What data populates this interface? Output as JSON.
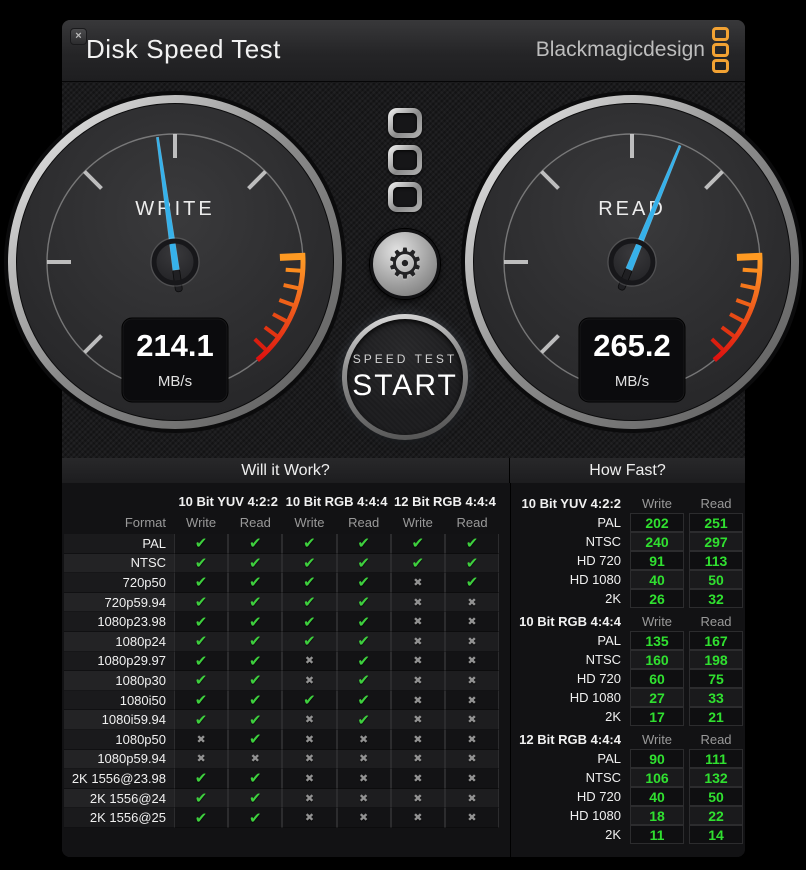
{
  "window": {
    "title": "Disk Speed Test",
    "close_label": "×"
  },
  "logo": {
    "text": "Blackmagicdesign",
    "squares": 3,
    "square_color": "#f2a233"
  },
  "gauges": [
    {
      "id": "write",
      "label": "WRITE",
      "value": "214.1",
      "unit": "MB/s",
      "value_num": 214.1
    },
    {
      "id": "read",
      "label": "READ",
      "value": "265.2",
      "unit": "MB/s",
      "value_num": 265.2
    }
  ],
  "controls": {
    "gear_icon": "⚙",
    "start_line1": "SPEED TEST",
    "start_line2": "START"
  },
  "will_it_work": {
    "title": "Will it Work?",
    "format_header": "Format",
    "groups": [
      "10 Bit YUV 4:2:2",
      "10 Bit RGB 4:4:4",
      "12 Bit RGB 4:4:4"
    ],
    "sub_headers": [
      "Write",
      "Read"
    ],
    "rows": [
      {
        "format": "PAL",
        "marks": [
          1,
          1,
          1,
          1,
          1,
          1
        ]
      },
      {
        "format": "NTSC",
        "marks": [
          1,
          1,
          1,
          1,
          1,
          1
        ]
      },
      {
        "format": "720p50",
        "marks": [
          1,
          1,
          1,
          1,
          0,
          1
        ]
      },
      {
        "format": "720p59.94",
        "marks": [
          1,
          1,
          1,
          1,
          0,
          0
        ]
      },
      {
        "format": "1080p23.98",
        "marks": [
          1,
          1,
          1,
          1,
          0,
          0
        ]
      },
      {
        "format": "1080p24",
        "marks": [
          1,
          1,
          1,
          1,
          0,
          0
        ]
      },
      {
        "format": "1080p29.97",
        "marks": [
          1,
          1,
          0,
          1,
          0,
          0
        ]
      },
      {
        "format": "1080p30",
        "marks": [
          1,
          1,
          0,
          1,
          0,
          0
        ]
      },
      {
        "format": "1080i50",
        "marks": [
          1,
          1,
          1,
          1,
          0,
          0
        ]
      },
      {
        "format": "1080i59.94",
        "marks": [
          1,
          1,
          0,
          1,
          0,
          0
        ]
      },
      {
        "format": "1080p50",
        "marks": [
          0,
          1,
          0,
          0,
          0,
          0
        ]
      },
      {
        "format": "1080p59.94",
        "marks": [
          0,
          0,
          0,
          0,
          0,
          0
        ]
      },
      {
        "format": "2K 1556@23.98",
        "marks": [
          1,
          1,
          0,
          0,
          0,
          0
        ]
      },
      {
        "format": "2K 1556@24",
        "marks": [
          1,
          1,
          0,
          0,
          0,
          0
        ]
      },
      {
        "format": "2K 1556@25",
        "marks": [
          1,
          1,
          0,
          0,
          0,
          0
        ]
      }
    ]
  },
  "how_fast": {
    "title": "How Fast?",
    "col_headers": [
      "Write",
      "Read"
    ],
    "sections": [
      {
        "name": "10 Bit YUV 4:2:2",
        "rows": [
          [
            "PAL",
            202,
            251
          ],
          [
            "NTSC",
            240,
            297
          ],
          [
            "HD 720",
            91,
            113
          ],
          [
            "HD 1080",
            40,
            50
          ],
          [
            "2K",
            26,
            32
          ]
        ]
      },
      {
        "name": "10 Bit RGB 4:4:4",
        "rows": [
          [
            "PAL",
            135,
            167
          ],
          [
            "NTSC",
            160,
            198
          ],
          [
            "HD 720",
            60,
            75
          ],
          [
            "HD 1080",
            27,
            33
          ],
          [
            "2K",
            17,
            21
          ]
        ]
      },
      {
        "name": "12 Bit RGB 4:4:4",
        "rows": [
          [
            "PAL",
            90,
            111
          ],
          [
            "NTSC",
            106,
            132
          ],
          [
            "HD 720",
            40,
            50
          ],
          [
            "HD 1080",
            18,
            22
          ],
          [
            "2K",
            11,
            14
          ]
        ]
      }
    ]
  },
  "colors": {
    "accent_orange": "#f2a233",
    "check_green": "#3ecf3e",
    "cross_gray": "#929292",
    "value_green": "#30e030",
    "needle_blue": "#36b1ea",
    "background": "#000000"
  }
}
